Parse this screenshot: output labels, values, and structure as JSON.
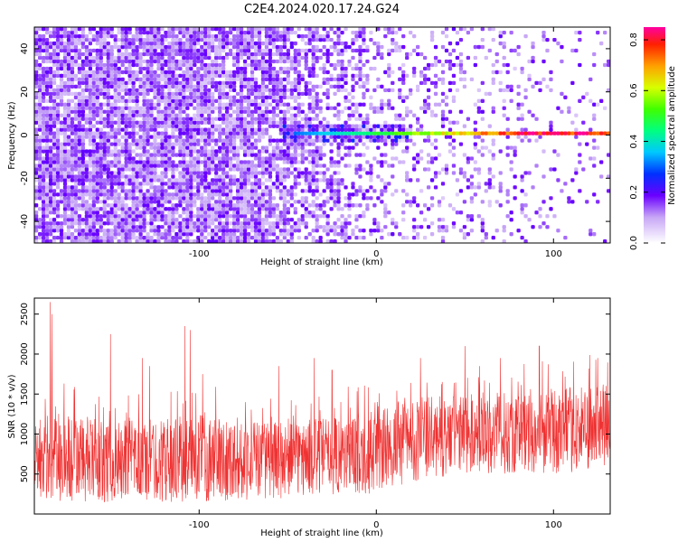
{
  "title": "C2E4.2024.020.17.24.G24",
  "chart_data": [
    {
      "type": "heatmap",
      "xlabel": "Height of straight line (km)",
      "ylabel": "Frequency (Hz)",
      "xlim": [
        -193,
        132
      ],
      "ylim": [
        -50,
        50
      ],
      "xticks": [
        {
          "v": -100,
          "label": "-100"
        },
        {
          "v": 0,
          "label": "0"
        },
        {
          "v": 100,
          "label": "100"
        }
      ],
      "yticks": [
        {
          "v": -40,
          "label": "-40"
        },
        {
          "v": -20,
          "label": "-20"
        },
        {
          "v": 0,
          "label": "0"
        },
        {
          "v": 20,
          "label": "20"
        },
        {
          "v": 40,
          "label": "40"
        }
      ],
      "colorbar": {
        "label": "Normalized spectral amplitude",
        "range": [
          0,
          0.85
        ],
        "ticks": [
          {
            "v": 0.0,
            "label": "0.0"
          },
          {
            "v": 0.2,
            "label": "0.2"
          },
          {
            "v": 0.4,
            "label": "0.4"
          },
          {
            "v": 0.6,
            "label": "0.6"
          },
          {
            "v": 0.8,
            "label": "0.8"
          }
        ]
      },
      "summary": {
        "noise_level": 0.15,
        "line_frequency": 0,
        "line_start_x": -48,
        "line_amplitude_start": 0.3,
        "line_amplitude_end": 0.85
      },
      "grid": false
    },
    {
      "type": "line",
      "xlabel": "Height of straight line (km)",
      "ylabel": "SNR (10 * v/v)",
      "xlim": [
        -193,
        132
      ],
      "ylim": [
        0,
        2700
      ],
      "xticks": [
        {
          "v": -100,
          "label": "-100"
        },
        {
          "v": 0,
          "label": "0"
        },
        {
          "v": 100,
          "label": "100"
        }
      ],
      "yticks": [
        {
          "v": 500,
          "label": "500"
        },
        {
          "v": 1000,
          "label": "1000"
        },
        {
          "v": 1500,
          "label": "1500"
        },
        {
          "v": 2000,
          "label": "2000"
        },
        {
          "v": 2500,
          "label": "2500"
        }
      ],
      "color": "#ef3232",
      "envelope": {
        "x": [
          -193,
          -180,
          -150,
          -120,
          -100,
          -50,
          -20,
          0,
          20,
          50,
          100,
          132
        ],
        "low": [
          200,
          100,
          150,
          150,
          150,
          200,
          250,
          250,
          400,
          500,
          500,
          550
        ],
        "high": [
          1200,
          1300,
          1150,
          1200,
          1250,
          1150,
          1250,
          1300,
          1450,
          1500,
          1550,
          1650
        ]
      },
      "peaks": [
        {
          "x": -184,
          "y": 2650
        },
        {
          "x": -183,
          "y": 2500
        },
        {
          "x": -150,
          "y": 2250
        },
        {
          "x": -132,
          "y": 1950
        },
        {
          "x": -128,
          "y": 1850
        },
        {
          "x": -108,
          "y": 2350
        },
        {
          "x": -105,
          "y": 2300
        },
        {
          "x": -98,
          "y": 1750
        },
        {
          "x": -55,
          "y": 1850
        },
        {
          "x": -35,
          "y": 1950
        },
        {
          "x": -25,
          "y": 1800
        },
        {
          "x": 25,
          "y": 1950
        },
        {
          "x": 50,
          "y": 2100
        },
        {
          "x": 70,
          "y": 1950
        },
        {
          "x": 92,
          "y": 2100
        },
        {
          "x": 125,
          "y": 1950
        }
      ],
      "grid": false
    }
  ]
}
